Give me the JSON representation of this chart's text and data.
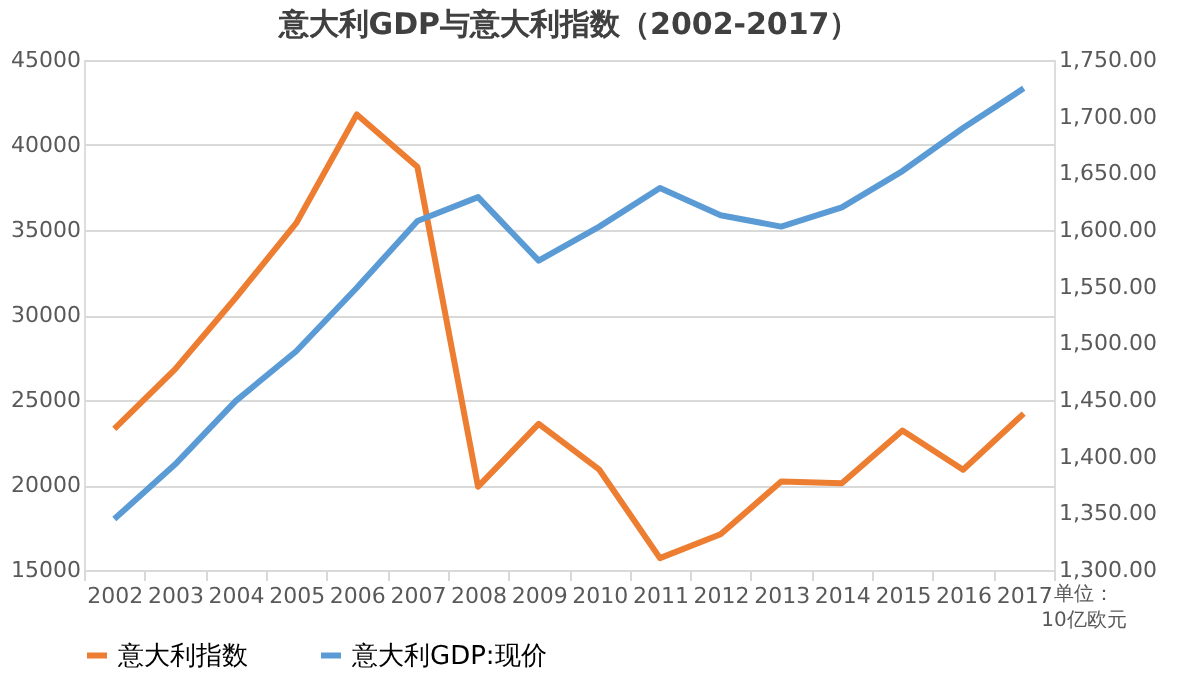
{
  "chart_data": {
    "type": "line",
    "title": "意大利GDP与意大利指数（2002-2017）",
    "categories": [
      "2002",
      "2003",
      "2004",
      "2005",
      "2006",
      "2007",
      "2008",
      "2009",
      "2010",
      "2011",
      "2012",
      "2013",
      "2014",
      "2015",
      "2016",
      "2017"
    ],
    "series": [
      {
        "name": "意大利指数",
        "color": "#ed7d31",
        "values": [
          23300,
          26800,
          31000,
          35400,
          41800,
          38700,
          19900,
          23600,
          20900,
          15700,
          17100,
          20200,
          20100,
          23200,
          20900,
          24200
        ]
      },
      {
        "name": "意大利GDP:现价",
        "color": "#5b9bd5",
        "axis": "y2",
        "values": [
          1345,
          1393,
          1449,
          1493,
          1549,
          1608,
          1629,
          1573,
          1603,
          1637,
          1613,
          1603,
          1620,
          1652,
          1690,
          1725
        ]
      }
    ],
    "ylim": [
      15000,
      45000
    ],
    "yticks": [
      15000,
      20000,
      25000,
      30000,
      35000,
      40000,
      45000
    ],
    "y2lim": [
      1300,
      1750
    ],
    "y2ticks": [
      {
        "value": 1300,
        "label": "1,300.00"
      },
      {
        "value": 1350,
        "label": "1,350.00"
      },
      {
        "value": 1400,
        "label": "1,400.00"
      },
      {
        "value": 1450,
        "label": "1,450.00"
      },
      {
        "value": 1500,
        "label": "1,500.00"
      },
      {
        "value": 1550,
        "label": "1,550.00"
      },
      {
        "value": 1600,
        "label": "1,600.00"
      },
      {
        "value": 1650,
        "label": "1,650.00"
      },
      {
        "value": 1700,
        "label": "1,700.00"
      },
      {
        "value": 1750,
        "label": "1,750.00"
      }
    ],
    "grid": "y",
    "legend": "bottom",
    "marker": "none",
    "line_style": "solid",
    "annotations": [
      "单位：\n10亿欧元"
    ]
  }
}
